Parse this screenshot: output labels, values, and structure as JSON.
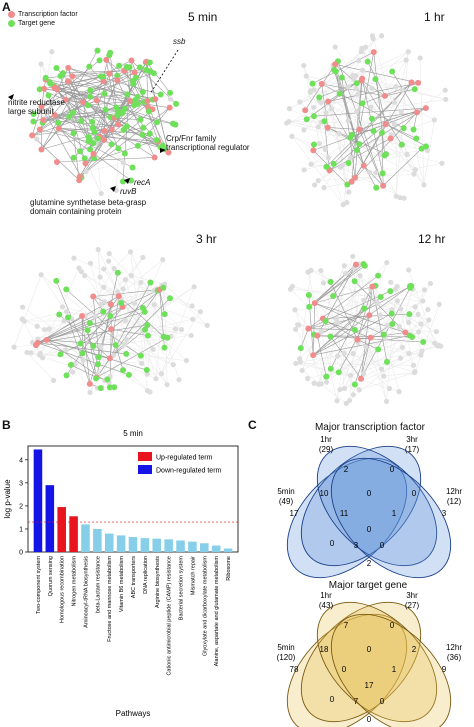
{
  "panels": {
    "a": "A",
    "b": "B",
    "c": "C"
  },
  "network": {
    "legend": [
      {
        "label": "Transcription factor",
        "color": "#f08c8c"
      },
      {
        "label": "Target gene",
        "color": "#6ee05a"
      }
    ],
    "titles": [
      "5 min",
      "1 hr",
      "3 hr",
      "12 hr"
    ],
    "annotations": {
      "ssb": "ssb",
      "nitrite": "nitrite reductase\nlarge subunit",
      "crp": "Crp/Fnr family\ntranscriptional regulator",
      "reca": "recA",
      "ruvb": "ruvB",
      "glutamine": "glutamine synthetase beta-grasp\ndomain containing protein"
    },
    "colors": {
      "tf": "#f08c8c",
      "target": "#6ee05a",
      "faded": "#dcdcdc",
      "edge": "#999999"
    }
  },
  "chart_data": {
    "type": "bar",
    "title": "5 min",
    "xlabel": "Pathways",
    "ylabel": "log p-value",
    "ylim": [
      0,
      4.6
    ],
    "yticks": [
      0,
      1,
      2,
      3,
      4
    ],
    "threshold": 1.3,
    "legend": [
      {
        "label": "Up-regulated term",
        "color": "#e8141e"
      },
      {
        "label": "Down-regulated term",
        "color": "#1414e6"
      }
    ],
    "categories": [
      "Two-component system",
      "Quorum sensing",
      "Homologous recombination",
      "Nitrogen metabolism",
      "Aminoacyl-tRNA biosynthesis",
      "beta-Lactam resistance",
      "Fructose and mannose metabolism",
      "Vitamin B6 metabolism",
      "ABC transporters",
      "DNA replication",
      "Arginine biosynthesis",
      "Cationic antimicrobial peptide (CAMP) resistance",
      "Bacterial secretion system",
      "Mismatch repair",
      "Glyoxylate and dicarboxylate metabolism",
      "Alanine, aspartate and glutamate metabolism",
      "Ribosome"
    ],
    "values": [
      4.45,
      2.9,
      1.95,
      1.55,
      1.2,
      1.0,
      0.8,
      0.72,
      0.65,
      0.6,
      0.58,
      0.55,
      0.5,
      0.45,
      0.38,
      0.28,
      0.15
    ],
    "bar_colors": [
      "#1414e6",
      "#1414e6",
      "#e8141e",
      "#e8141e",
      "#87cfe8",
      "#87cfe8",
      "#87cfe8",
      "#87cfe8",
      "#87cfe8",
      "#87cfe8",
      "#87cfe8",
      "#87cfe8",
      "#87cfe8",
      "#87cfe8",
      "#87cfe8",
      "#87cfe8",
      "#87cfe8"
    ]
  },
  "venn_tf": {
    "title": "Major transcription factor",
    "sets": [
      "5min\n(49)",
      "1hr\n(29)",
      "3hr\n(17)",
      "12hr\n(12)"
    ],
    "numbers": [
      "2",
      "0",
      "10",
      "0",
      "0",
      "17",
      "11",
      "0",
      "1",
      "3",
      "0",
      "3",
      "0",
      "2"
    ]
  },
  "venn_target": {
    "title": "Major target gene",
    "sets": [
      "5min\n(120)",
      "1hr\n(43)",
      "3hr\n(27)",
      "12hr\n(36)"
    ],
    "numbers": [
      "7",
      "0",
      "18",
      "0",
      "2",
      "78",
      "0",
      "17",
      "1",
      "9",
      "0",
      "7",
      "0",
      "0"
    ]
  }
}
